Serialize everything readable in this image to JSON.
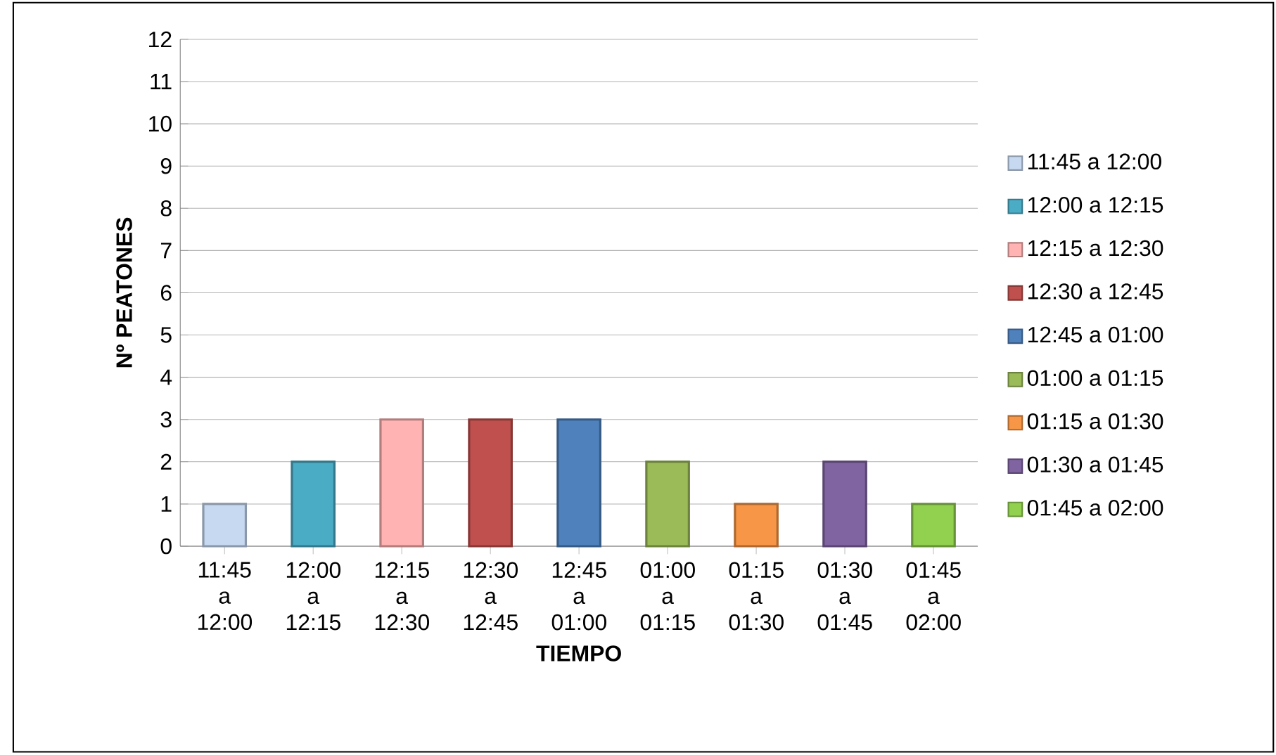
{
  "chart_data": {
    "type": "bar",
    "xlabel": "TIEMPO",
    "ylabel": "Nº PEATONES",
    "categories": [
      "11:45 a 12:00",
      "12:00 a 12:15",
      "12:15 a 12:30",
      "12:30 a 12:45",
      "12:45 a 01:00",
      "01:00 a 01:15",
      "01:15 a 01:30",
      "01:30 a 01:45",
      "01:45 a 02:00"
    ],
    "series": [
      {
        "name": "11:45 a 12:00",
        "color": "#c6d9f1",
        "values": [
          1,
          null,
          null,
          null,
          null,
          null,
          null,
          null,
          null
        ]
      },
      {
        "name": "12:00 a 12:15",
        "color": "#4bacc6",
        "values": [
          null,
          2,
          null,
          null,
          null,
          null,
          null,
          null,
          null
        ]
      },
      {
        "name": "12:15 a 12:30",
        "color": "#ffb3b3",
        "values": [
          null,
          null,
          3,
          null,
          null,
          null,
          null,
          null,
          null
        ]
      },
      {
        "name": "12:30 a 12:45",
        "color": "#c0504d",
        "values": [
          null,
          null,
          null,
          3,
          null,
          null,
          null,
          null,
          null
        ]
      },
      {
        "name": "12:45 a 01:00",
        "color": "#4f81bd",
        "values": [
          null,
          null,
          null,
          null,
          3,
          null,
          null,
          null,
          null
        ]
      },
      {
        "name": "01:00 a 01:15",
        "color": "#9bbb59",
        "values": [
          null,
          null,
          null,
          null,
          null,
          2,
          null,
          null,
          null
        ]
      },
      {
        "name": "01:15 a 01:30",
        "color": "#f79646",
        "values": [
          null,
          null,
          null,
          null,
          null,
          null,
          1,
          null,
          null
        ]
      },
      {
        "name": "01:30 a 01:45",
        "color": "#8064a2",
        "values": [
          null,
          null,
          null,
          null,
          null,
          null,
          null,
          2,
          null
        ]
      },
      {
        "name": "01:45 a 02:00",
        "color": "#92d050",
        "values": [
          null,
          null,
          null,
          null,
          null,
          null,
          null,
          null,
          1
        ]
      }
    ],
    "ylim": [
      0,
      12
    ],
    "yticks": [
      0,
      1,
      2,
      3,
      4,
      5,
      6,
      7,
      8,
      9,
      10,
      11,
      12
    ],
    "grid": "y",
    "legend": "right"
  }
}
